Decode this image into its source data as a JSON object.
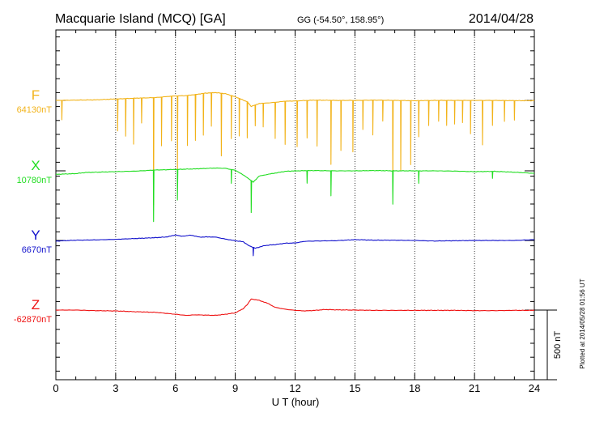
{
  "header": {
    "station": "Macquarie Island (MCQ)  [GA]",
    "coords": "GG (-54.50°, 158.95°)",
    "date": "2014/04/28"
  },
  "footer": {
    "xlabel": "U T (hour)",
    "plotted": "Plotted at 2014/05/28 01:56 UT",
    "scale_label": "500 nT"
  },
  "chart_data": {
    "type": "line",
    "x_range": [
      0,
      24
    ],
    "x_ticks": [
      0,
      3,
      6,
      9,
      12,
      15,
      18,
      21,
      24
    ],
    "grid": "vertical dotted at 3h intervals",
    "scale_bar_nT": 500,
    "panel_range_nT": 1000,
    "series": [
      {
        "name": "F",
        "baseline_label": "64130nT",
        "color": "#f2b319",
        "baseline_nT": 64130,
        "points": [
          [
            0,
            64130
          ],
          [
            1,
            64132
          ],
          [
            2,
            64134
          ],
          [
            3,
            64140
          ],
          [
            4,
            64146
          ],
          [
            5,
            64150
          ],
          [
            5.6,
            64158
          ],
          [
            6,
            64162
          ],
          [
            6.5,
            64164
          ],
          [
            7,
            64172
          ],
          [
            7.5,
            64182
          ],
          [
            8,
            64186
          ],
          [
            8.5,
            64178
          ],
          [
            9,
            64156
          ],
          [
            9.6,
            64120
          ],
          [
            9.8,
            64086
          ],
          [
            10.2,
            64108
          ],
          [
            10.5,
            64110
          ],
          [
            11,
            64116
          ],
          [
            11.5,
            64124
          ],
          [
            12,
            64126
          ],
          [
            13,
            64132
          ],
          [
            14,
            64130
          ],
          [
            15,
            64130
          ],
          [
            16,
            64132
          ],
          [
            17,
            64130
          ],
          [
            18,
            64128
          ],
          [
            19,
            64130
          ],
          [
            20,
            64130
          ],
          [
            21,
            64130
          ],
          [
            22,
            64130
          ],
          [
            23,
            64128
          ],
          [
            24,
            64128
          ]
        ],
        "spikes": [
          [
            0.3,
            -140
          ],
          [
            3.1,
            -230
          ],
          [
            3.5,
            -270
          ],
          [
            3.9,
            -330
          ],
          [
            4.3,
            -180
          ],
          [
            4.9,
            -770
          ],
          [
            5.3,
            -350
          ],
          [
            5.8,
            -320
          ],
          [
            6.1,
            -560
          ],
          [
            6.6,
            -360
          ],
          [
            7.0,
            -330
          ],
          [
            7.4,
            -300
          ],
          [
            7.8,
            -240
          ],
          [
            8.3,
            -450
          ],
          [
            8.8,
            -310
          ],
          [
            9.2,
            -270
          ],
          [
            9.6,
            -260
          ],
          [
            10.0,
            -150
          ],
          [
            10.4,
            -170
          ],
          [
            11.0,
            -260
          ],
          [
            11.5,
            -310
          ],
          [
            12.1,
            -330
          ],
          [
            12.6,
            -270
          ],
          [
            13.1,
            -330
          ],
          [
            13.8,
            -460
          ],
          [
            14.3,
            -360
          ],
          [
            14.9,
            -370
          ],
          [
            15.4,
            -210
          ],
          [
            15.9,
            -250
          ],
          [
            16.4,
            -150
          ],
          [
            16.9,
            -590
          ],
          [
            17.3,
            -500
          ],
          [
            17.8,
            -460
          ],
          [
            18.2,
            -260
          ],
          [
            18.7,
            -180
          ],
          [
            19.2,
            -150
          ],
          [
            19.6,
            -180
          ],
          [
            20.0,
            -170
          ],
          [
            20.4,
            -160
          ],
          [
            20.8,
            -240
          ],
          [
            21.4,
            -320
          ],
          [
            21.9,
            -180
          ],
          [
            22.5,
            -150
          ],
          [
            23.0,
            -140
          ]
        ]
      },
      {
        "name": "X",
        "baseline_label": "10780nT",
        "color": "#22dd22",
        "baseline_nT": 10780,
        "points": [
          [
            0,
            10755
          ],
          [
            1,
            10760
          ],
          [
            1.5,
            10768
          ],
          [
            2,
            10770
          ],
          [
            3,
            10774
          ],
          [
            4,
            10778
          ],
          [
            5,
            10786
          ],
          [
            5.6,
            10788
          ],
          [
            6,
            10790
          ],
          [
            7,
            10794
          ],
          [
            8,
            10800
          ],
          [
            8.5,
            10798
          ],
          [
            9,
            10784
          ],
          [
            9.3,
            10760
          ],
          [
            9.6,
            10730
          ],
          [
            9.9,
            10700
          ],
          [
            10.2,
            10742
          ],
          [
            10.6,
            10754
          ],
          [
            11,
            10764
          ],
          [
            11.5,
            10776
          ],
          [
            12,
            10780
          ],
          [
            13,
            10782
          ],
          [
            14,
            10780
          ],
          [
            15,
            10780
          ],
          [
            16,
            10782
          ],
          [
            17,
            10780
          ],
          [
            18,
            10780
          ],
          [
            19,
            10780
          ],
          [
            20,
            10778
          ],
          [
            21,
            10774
          ],
          [
            22,
            10776
          ],
          [
            23,
            10770
          ],
          [
            24,
            10762
          ]
        ],
        "spikes": [
          [
            4.9,
            -370
          ],
          [
            6.1,
            -220
          ],
          [
            8.8,
            -100
          ],
          [
            9.8,
            -230
          ],
          [
            12.6,
            -90
          ],
          [
            13.8,
            -180
          ],
          [
            16.9,
            -240
          ],
          [
            18.2,
            -90
          ],
          [
            21.9,
            -50
          ]
        ]
      },
      {
        "name": "Y",
        "baseline_label": "6670nT",
        "color": "#1111cc",
        "baseline_nT": 6670,
        "points": [
          [
            0,
            6665
          ],
          [
            1,
            6672
          ],
          [
            2,
            6674
          ],
          [
            3,
            6678
          ],
          [
            4,
            6684
          ],
          [
            5,
            6690
          ],
          [
            5.6,
            6696
          ],
          [
            6,
            6710
          ],
          [
            6.3,
            6700
          ],
          [
            6.8,
            6708
          ],
          [
            7.2,
            6694
          ],
          [
            7.7,
            6696
          ],
          [
            8,
            6694
          ],
          [
            8.5,
            6680
          ],
          [
            9,
            6668
          ],
          [
            9.4,
            6660
          ],
          [
            9.7,
            6632
          ],
          [
            10,
            6614
          ],
          [
            10.5,
            6634
          ],
          [
            11,
            6640
          ],
          [
            11.5,
            6650
          ],
          [
            12,
            6652
          ],
          [
            12.5,
            6664
          ],
          [
            13,
            6666
          ],
          [
            14,
            6668
          ],
          [
            15,
            6676
          ],
          [
            16,
            6672
          ],
          [
            17,
            6672
          ],
          [
            18,
            6670
          ],
          [
            19,
            6666
          ],
          [
            20,
            6668
          ],
          [
            21,
            6670
          ],
          [
            22,
            6670
          ],
          [
            23,
            6670
          ],
          [
            24,
            6676
          ]
        ],
        "spikes": [
          [
            9.9,
            -60
          ]
        ]
      },
      {
        "name": "Z",
        "baseline_label": "-62870nT",
        "color": "#ee1111",
        "baseline_nT": -62870,
        "points": [
          [
            0,
            -62870
          ],
          [
            1,
            -62870
          ],
          [
            2,
            -62874
          ],
          [
            3,
            -62876
          ],
          [
            4,
            -62882
          ],
          [
            5,
            -62886
          ],
          [
            6,
            -62900
          ],
          [
            6.5,
            -62908
          ],
          [
            7,
            -62904
          ],
          [
            8,
            -62908
          ],
          [
            8.5,
            -62900
          ],
          [
            9,
            -62890
          ],
          [
            9.4,
            -62860
          ],
          [
            9.6,
            -62830
          ],
          [
            9.8,
            -62790
          ],
          [
            10.2,
            -62800
          ],
          [
            10.6,
            -62820
          ],
          [
            11,
            -62850
          ],
          [
            11.5,
            -62864
          ],
          [
            12,
            -62872
          ],
          [
            12.5,
            -62876
          ],
          [
            13,
            -62872
          ],
          [
            13.5,
            -62866
          ],
          [
            14,
            -62868
          ],
          [
            15,
            -62870
          ],
          [
            16,
            -62872
          ],
          [
            17,
            -62872
          ],
          [
            18,
            -62872
          ],
          [
            19,
            -62872
          ],
          [
            20,
            -62872
          ],
          [
            21,
            -62874
          ],
          [
            22,
            -62874
          ],
          [
            23,
            -62872
          ],
          [
            24,
            -62872
          ]
        ],
        "spikes": []
      }
    ]
  }
}
